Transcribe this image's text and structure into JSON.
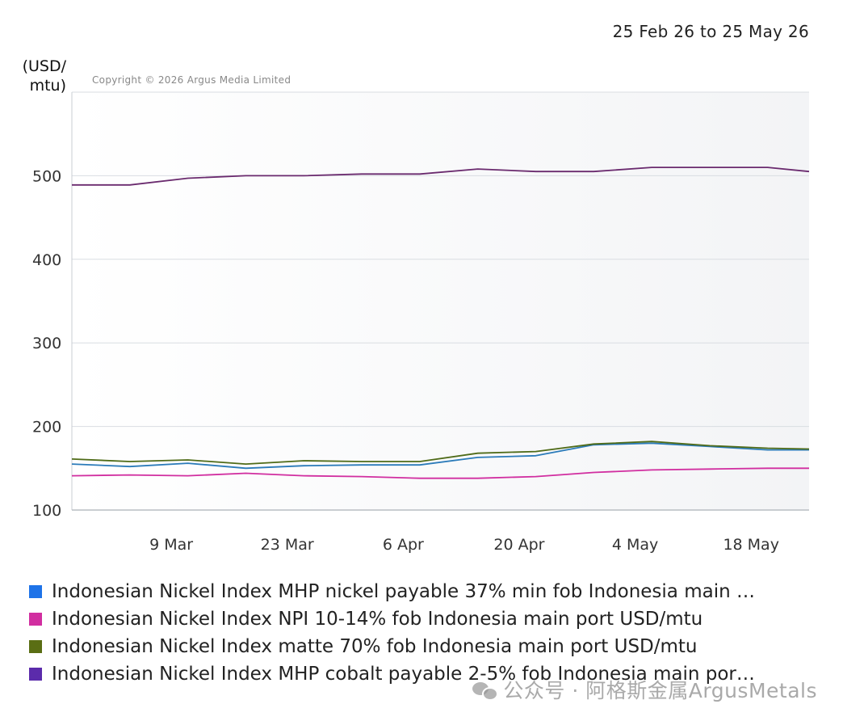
{
  "header": {
    "date_range": "25 Feb 26 to 25 May 26",
    "unit": "(USD/ mtu)",
    "copyright": "Copyright © 2026 Argus Media Limited"
  },
  "watermark": {
    "text": "公众号 · 阿格斯金属ArgusMetals",
    "icon": "wechat-icon"
  },
  "chart_data": {
    "type": "line",
    "title": "",
    "ylabel": "(USD/ mtu)",
    "xlabel": "",
    "ylim": [
      100,
      600
    ],
    "yticks": [
      100,
      200,
      300,
      400,
      500
    ],
    "x_start": "25 Feb",
    "x_end": "25 May",
    "xtick_labels": [
      "9 Mar",
      "23 Mar",
      "6 Apr",
      "20 Apr",
      "4 May",
      "18 May"
    ],
    "grid": true,
    "x": [
      "25 Feb",
      "4 Mar",
      "11 Mar",
      "18 Mar",
      "25 Mar",
      "1 Apr",
      "8 Apr",
      "15 Apr",
      "22 Apr",
      "29 Apr",
      "6 May",
      "13 May",
      "20 May",
      "25 May"
    ],
    "series": [
      {
        "name": "Indonesian Nickel Index MHP nickel payable 37% min fob Indonesia main …",
        "color": "#1e73e8",
        "line_color": "#2b7bb9",
        "values": [
          155,
          152,
          156,
          150,
          153,
          154,
          154,
          163,
          165,
          178,
          180,
          176,
          172,
          172
        ]
      },
      {
        "name": "Indonesian Nickel Index NPI 10-14% fob Indonesia main port USD/mtu",
        "color": "#d12ea0",
        "line_color": "#d12ea0",
        "values": [
          141,
          142,
          141,
          144,
          141,
          140,
          138,
          138,
          140,
          145,
          148,
          149,
          150,
          150
        ]
      },
      {
        "name": "Indonesian Nickel Index matte 70% fob Indonesia main port USD/mtu",
        "color": "#5a6e14",
        "line_color": "#4f6b18",
        "values": [
          161,
          158,
          160,
          155,
          159,
          158,
          158,
          168,
          170,
          179,
          182,
          177,
          174,
          173
        ]
      },
      {
        "name": "Indonesian Nickel Index MHP cobalt payable 2-5% fob Indonesia main por…",
        "color": "#5b2bab",
        "line_color": "#6a2a6e",
        "values": [
          489,
          489,
          497,
          500,
          500,
          502,
          502,
          508,
          505,
          505,
          510,
          510,
          510,
          505
        ]
      }
    ],
    "legend_position": "bottom"
  }
}
